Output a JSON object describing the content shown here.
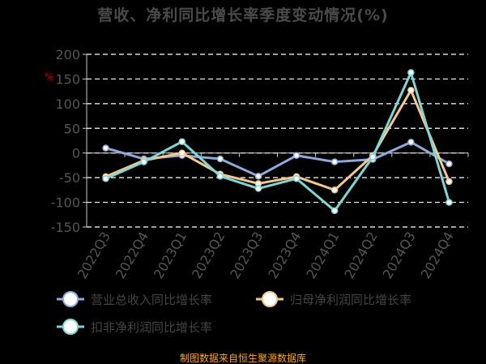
{
  "chart_data": {
    "type": "line",
    "title": "营收、净利同比增长率季度变动情况(%)",
    "unit_label": "%",
    "source_note": "制图数据来自恒生聚源数据库",
    "categories": [
      "2022Q3",
      "2022Q4",
      "2023Q1",
      "2023Q2",
      "2023Q3",
      "2023Q4",
      "2024Q1",
      "2024Q2",
      "2024Q3",
      "2024Q4"
    ],
    "y_ticks": [
      "200",
      "150",
      "100",
      "50",
      "0",
      "-50",
      "-100",
      "-150"
    ],
    "ylim": [
      -150,
      200
    ],
    "grid": true,
    "legend_position": "bottom",
    "series": [
      {
        "name": "营业总收入同比增长率",
        "color": "#8ea9db",
        "values": [
          10,
          -12,
          -5,
          -12,
          -47,
          -5,
          -18,
          -13,
          22,
          -22
        ]
      },
      {
        "name": "归母净利润同比增长率",
        "color": "#f4c78a",
        "values": [
          -48,
          -15,
          0,
          -43,
          -62,
          -48,
          -75,
          -5,
          127,
          -58
        ]
      },
      {
        "name": "扣非净利润同比增长率",
        "color": "#7ed6d6",
        "values": [
          -52,
          -18,
          23,
          -47,
          -72,
          -52,
          -117,
          -8,
          163,
          -100
        ]
      }
    ]
  }
}
